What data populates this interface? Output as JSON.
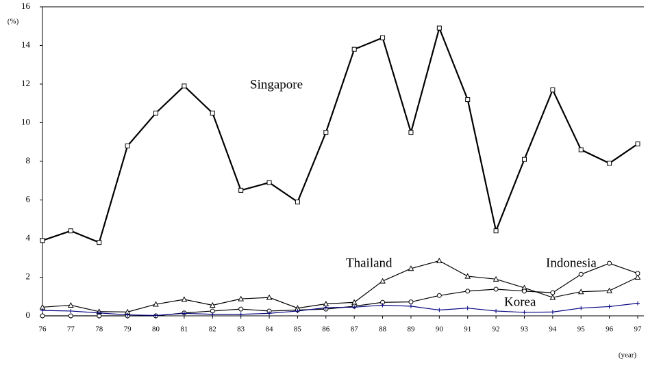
{
  "chart_data": {
    "type": "line",
    "y_label": "(%)",
    "x_label": "(year)",
    "categories": [
      "76",
      "77",
      "78",
      "79",
      "80",
      "81",
      "82",
      "83",
      "84",
      "85",
      "86",
      "87",
      "88",
      "89",
      "90",
      "91",
      "92",
      "93",
      "94",
      "95",
      "96",
      "97"
    ],
    "ylim": [
      0,
      16
    ],
    "yticks": [
      0,
      2,
      4,
      6,
      8,
      10,
      12,
      14,
      16
    ],
    "grid": false,
    "series": [
      {
        "name": "Singapore",
        "color": "#000000",
        "marker": "square",
        "values": [
          3.9,
          4.4,
          3.8,
          8.8,
          10.5,
          11.9,
          10.5,
          6.5,
          6.9,
          5.9,
          9.5,
          13.8,
          14.4,
          9.5,
          14.9,
          11.2,
          4.4,
          8.1,
          11.7,
          8.6,
          7.9,
          8.9
        ]
      },
      {
        "name": "Thailand",
        "color": "#000000",
        "marker": "triangle",
        "values": [
          0.45,
          0.55,
          0.22,
          0.2,
          0.6,
          0.85,
          0.55,
          0.88,
          0.95,
          0.4,
          0.62,
          0.7,
          1.8,
          2.45,
          2.85,
          2.05,
          1.9,
          1.45,
          0.95,
          1.25,
          1.3,
          2.0
        ]
      },
      {
        "name": "Indonesia",
        "color": "#000000",
        "marker": "circle",
        "values": [
          0,
          0,
          0,
          0,
          0,
          0.15,
          0.25,
          0.35,
          0.25,
          0.3,
          0.35,
          0.5,
          0.7,
          0.72,
          1.05,
          1.28,
          1.38,
          1.28,
          1.2,
          2.15,
          2.72,
          2.2
        ]
      },
      {
        "name": "Korea",
        "color": "#000080",
        "marker": "plus",
        "values": [
          0.28,
          0.25,
          0.15,
          0.05,
          0.02,
          0.13,
          0.08,
          0.08,
          0.13,
          0.25,
          0.42,
          0.45,
          0.55,
          0.5,
          0.3,
          0.4,
          0.25,
          0.18,
          0.2,
          0.4,
          0.48,
          0.65
        ]
      }
    ]
  }
}
